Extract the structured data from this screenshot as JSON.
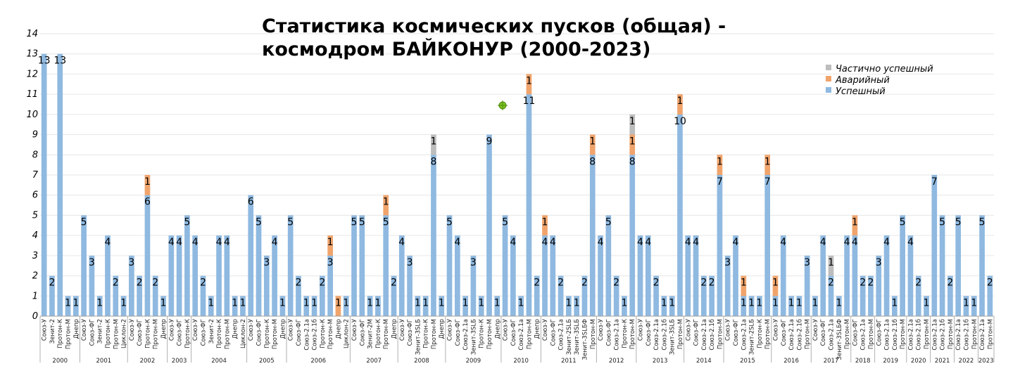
{
  "chart_data": {
    "type": "bar",
    "stacked": true,
    "title": "Статистика космических пусков (общая) - космодром БАЙКОНУР (2000-2023)",
    "title_lines": [
      "Статистика космических пусков (общая) -",
      "космодром БАЙКОНУР (2000-2023)"
    ],
    "ylim": [
      0,
      14
    ],
    "yticks": [
      0,
      1,
      2,
      3,
      4,
      5,
      6,
      7,
      8,
      9,
      10,
      11,
      12,
      13,
      14
    ],
    "grid": true,
    "legend_position": "top-right",
    "colors": {
      "success": "#8fb9e0",
      "failure": "#f0a46c",
      "partial": "#bdbdbd",
      "marker": "#7cc41f"
    },
    "series": [
      {
        "key": "partial",
        "name": "Частично успешный"
      },
      {
        "key": "failure",
        "name": "Аварийный"
      },
      {
        "key": "success",
        "name": "Успешный"
      }
    ],
    "groups": [
      {
        "year": "2000",
        "bars": [
          {
            "label": "Союз-У",
            "s": 13,
            "f": 0,
            "p": 0
          },
          {
            "label": "Зенит-2",
            "s": 2,
            "f": 0,
            "p": 0
          },
          {
            "label": "Протон-К",
            "s": 13,
            "f": 0,
            "p": 0
          },
          {
            "label": "Протон-М",
            "s": 1,
            "f": 0,
            "p": 0
          },
          {
            "label": "Днепр",
            "s": 1,
            "f": 0,
            "p": 0
          }
        ]
      },
      {
        "year": "2001",
        "bars": [
          {
            "label": "Союз-У",
            "s": 5,
            "f": 0,
            "p": 0
          },
          {
            "label": "Союз-ФГ",
            "s": 3,
            "f": 0,
            "p": 0
          },
          {
            "label": "Зенит-2",
            "s": 1,
            "f": 0,
            "p": 0
          },
          {
            "label": "Протон-К",
            "s": 4,
            "f": 0,
            "p": 0
          },
          {
            "label": "Протон-М",
            "s": 2,
            "f": 0,
            "p": 0
          },
          {
            "label": "Циклон-2",
            "s": 1,
            "f": 0,
            "p": 0
          }
        ]
      },
      {
        "year": "2002",
        "bars": [
          {
            "label": "Союз-У",
            "s": 3,
            "f": 0,
            "p": 0
          },
          {
            "label": "Союз-ФГ",
            "s": 2,
            "f": 0,
            "p": 0
          },
          {
            "label": "Протон-К",
            "s": 6,
            "f": 1,
            "p": 0
          },
          {
            "label": "Протон-М",
            "s": 2,
            "f": 0,
            "p": 0
          },
          {
            "label": "Днепр",
            "s": 1,
            "f": 0,
            "p": 0
          }
        ]
      },
      {
        "year": "2003",
        "bars": [
          {
            "label": "Союз-У",
            "s": 4,
            "f": 0,
            "p": 0
          },
          {
            "label": "Союз-ФГ",
            "s": 4,
            "f": 0,
            "p": 0
          },
          {
            "label": "Протон-К",
            "s": 5,
            "f": 0,
            "p": 0
          }
        ]
      },
      {
        "year": "2004",
        "bars": [
          {
            "label": "Союз-У",
            "s": 4,
            "f": 0,
            "p": 0
          },
          {
            "label": "Союз-ФГ",
            "s": 2,
            "f": 0,
            "p": 0
          },
          {
            "label": "Зенит-2",
            "s": 1,
            "f": 0,
            "p": 0
          },
          {
            "label": "Протон-К",
            "s": 4,
            "f": 0,
            "p": 0
          },
          {
            "label": "Протон-М",
            "s": 4,
            "f": 0,
            "p": 0
          },
          {
            "label": "Днепр",
            "s": 1,
            "f": 0,
            "p": 0
          },
          {
            "label": "Циклон-2",
            "s": 1,
            "f": 0,
            "p": 0
          }
        ]
      },
      {
        "year": "2005",
        "bars": [
          {
            "label": "Союз-У",
            "s": 6,
            "f": 0,
            "p": 0
          },
          {
            "label": "Союз-ФГ",
            "s": 5,
            "f": 0,
            "p": 0
          },
          {
            "label": "Протон-К",
            "s": 3,
            "f": 0,
            "p": 0
          },
          {
            "label": "Протон-М",
            "s": 4,
            "f": 0,
            "p": 0
          },
          {
            "label": "Днепр",
            "s": 1,
            "f": 0,
            "p": 0
          }
        ]
      },
      {
        "year": "2006",
        "bars": [
          {
            "label": "Союз-У",
            "s": 5,
            "f": 0,
            "p": 0
          },
          {
            "label": "Союз-ФГ",
            "s": 2,
            "f": 0,
            "p": 0
          },
          {
            "label": "Союз-2.1а",
            "s": 1,
            "f": 0,
            "p": 0
          },
          {
            "label": "Союз-2.1б",
            "s": 1,
            "f": 0,
            "p": 0
          },
          {
            "label": "Протон-К",
            "s": 2,
            "f": 0,
            "p": 0
          },
          {
            "label": "Протон-М",
            "s": 3,
            "f": 1,
            "p": 0
          },
          {
            "label": "Днепр",
            "s": 0,
            "f": 1,
            "p": 0
          },
          {
            "label": "Циклон-2",
            "s": 1,
            "f": 0,
            "p": 0
          }
        ]
      },
      {
        "year": "2007",
        "bars": [
          {
            "label": "Союз-У",
            "s": 5,
            "f": 0,
            "p": 0
          },
          {
            "label": "Союз-ФГ",
            "s": 5,
            "f": 0,
            "p": 0
          },
          {
            "label": "Зенит-2М",
            "s": 1,
            "f": 0,
            "p": 0
          },
          {
            "label": "Протон-К",
            "s": 1,
            "f": 0,
            "p": 0
          },
          {
            "label": "Протон-М",
            "s": 5,
            "f": 1,
            "p": 0
          },
          {
            "label": "Днепр",
            "s": 2,
            "f": 0,
            "p": 0
          }
        ]
      },
      {
        "year": "2008",
        "bars": [
          {
            "label": "Союз-У",
            "s": 4,
            "f": 0,
            "p": 0
          },
          {
            "label": "Союз-ФГ",
            "s": 3,
            "f": 0,
            "p": 0
          },
          {
            "label": "Зенит-3SLБ",
            "s": 1,
            "f": 0,
            "p": 0
          },
          {
            "label": "Протон-К",
            "s": 1,
            "f": 0,
            "p": 0
          },
          {
            "label": "Протон-М",
            "s": 8,
            "f": 0,
            "p": 1
          },
          {
            "label": "Днепр",
            "s": 1,
            "f": 0,
            "p": 0
          }
        ]
      },
      {
        "year": "2009",
        "bars": [
          {
            "label": "Союз-У",
            "s": 5,
            "f": 0,
            "p": 0
          },
          {
            "label": "Союз-ФГ",
            "s": 4,
            "f": 0,
            "p": 0
          },
          {
            "label": "Союз-2.1а",
            "s": 1,
            "f": 0,
            "p": 0
          },
          {
            "label": "Зенит-3SLБ",
            "s": 3,
            "f": 0,
            "p": 0
          },
          {
            "label": "Протон-К",
            "s": 1,
            "f": 0,
            "p": 0
          },
          {
            "label": "Протон-М",
            "s": 9,
            "f": 0,
            "p": 0
          },
          {
            "label": "Днепр",
            "s": 1,
            "f": 0,
            "p": 0
          }
        ]
      },
      {
        "year": "2010",
        "bars": [
          {
            "label": "Союз-У",
            "s": 5,
            "f": 0,
            "p": 0
          },
          {
            "label": "Союз-ФГ",
            "s": 4,
            "f": 0,
            "p": 0
          },
          {
            "label": "Союз-2.1а",
            "s": 1,
            "f": 0,
            "p": 0
          },
          {
            "label": "Протон-М",
            "s": 11,
            "f": 1,
            "p": 0
          },
          {
            "label": "Днепр",
            "s": 2,
            "f": 0,
            "p": 0
          }
        ]
      },
      {
        "year": "2011",
        "bars": [
          {
            "label": "Союз-У",
            "s": 4,
            "f": 1,
            "p": 0
          },
          {
            "label": "Союз-ФГ",
            "s": 4,
            "f": 0,
            "p": 0
          },
          {
            "label": "Союз-2.1а",
            "s": 2,
            "f": 0,
            "p": 0
          },
          {
            "label": "Зенит-2SLБ",
            "s": 1,
            "f": 0,
            "p": 0
          },
          {
            "label": "Зенит-3SLБ",
            "s": 1,
            "f": 0,
            "p": 0
          },
          {
            "label": "Зенит-3SLБФ",
            "s": 2,
            "f": 0,
            "p": 0
          },
          {
            "label": "Протон-М",
            "s": 8,
            "f": 1,
            "p": 0
          }
        ]
      },
      {
        "year": "2012",
        "bars": [
          {
            "label": "Союз-У",
            "s": 4,
            "f": 0,
            "p": 0
          },
          {
            "label": "Союз-ФГ",
            "s": 5,
            "f": 0,
            "p": 0
          },
          {
            "label": "Союз-2.1а",
            "s": 2,
            "f": 0,
            "p": 0
          },
          {
            "label": "Протон-К",
            "s": 1,
            "f": 0,
            "p": 0
          },
          {
            "label": "Протон-М",
            "s": 8,
            "f": 1,
            "p": 1
          }
        ]
      },
      {
        "year": "2013",
        "bars": [
          {
            "label": "Союз-У",
            "s": 4,
            "f": 0,
            "p": 0
          },
          {
            "label": "Союз-ФГ",
            "s": 4,
            "f": 0,
            "p": 0
          },
          {
            "label": "Союз-2.1а",
            "s": 2,
            "f": 0,
            "p": 0
          },
          {
            "label": "Союз-2.1б",
            "s": 1,
            "f": 0,
            "p": 0
          },
          {
            "label": "Зенит-3SLБ",
            "s": 1,
            "f": 0,
            "p": 0
          },
          {
            "label": "Протон-М",
            "s": 10,
            "f": 1,
            "p": 0
          }
        ]
      },
      {
        "year": "2014",
        "bars": [
          {
            "label": "Союз-У",
            "s": 4,
            "f": 0,
            "p": 0
          },
          {
            "label": "Союз-ФГ",
            "s": 4,
            "f": 0,
            "p": 0
          },
          {
            "label": "Союз-2.1а",
            "s": 2,
            "f": 0,
            "p": 0
          },
          {
            "label": "Союз-2.1б",
            "s": 2,
            "f": 0,
            "p": 0
          },
          {
            "label": "Протон-М",
            "s": 7,
            "f": 1,
            "p": 0
          }
        ]
      },
      {
        "year": "2015",
        "bars": [
          {
            "label": "Союз-У",
            "s": 3,
            "f": 0,
            "p": 0
          },
          {
            "label": "Союз-ФГ",
            "s": 4,
            "f": 0,
            "p": 0
          },
          {
            "label": "Союз-2.1а",
            "s": 1,
            "f": 1,
            "p": 0
          },
          {
            "label": "Зенит-2SLБ",
            "s": 1,
            "f": 0,
            "p": 0
          },
          {
            "label": "Протон-К",
            "s": 1,
            "f": 0,
            "p": 0
          },
          {
            "label": "Протон-М",
            "s": 7,
            "f": 1,
            "p": 0
          }
        ]
      },
      {
        "year": "2016",
        "bars": [
          {
            "label": "Союз-У",
            "s": 1,
            "f": 1,
            "p": 0
          },
          {
            "label": "Союз-ФГ",
            "s": 4,
            "f": 0,
            "p": 0
          },
          {
            "label": "Союз-2.1а",
            "s": 1,
            "f": 0,
            "p": 0
          },
          {
            "label": "Союз-2.1б",
            "s": 1,
            "f": 0,
            "p": 0
          },
          {
            "label": "Протон-М",
            "s": 3,
            "f": 0,
            "p": 0
          }
        ]
      },
      {
        "year": "2017",
        "bars": [
          {
            "label": "Союз-У",
            "s": 1,
            "f": 0,
            "p": 0
          },
          {
            "label": "Союз-ФГ",
            "s": 4,
            "f": 0,
            "p": 0
          },
          {
            "label": "Союз-2.1а",
            "s": 2,
            "f": 0,
            "p": 1
          },
          {
            "label": "Зенит-3SLБФ",
            "s": 1,
            "f": 0,
            "p": 0
          },
          {
            "label": "Протон-М",
            "s": 4,
            "f": 0,
            "p": 0
          }
        ]
      },
      {
        "year": "2018",
        "bars": [
          {
            "label": "Союз-ФГ",
            "s": 4,
            "f": 1,
            "p": 0
          },
          {
            "label": "Союз-2.1а",
            "s": 2,
            "f": 0,
            "p": 0
          },
          {
            "label": "Протон-М",
            "s": 2,
            "f": 0,
            "p": 0
          }
        ]
      },
      {
        "year": "2019",
        "bars": [
          {
            "label": "Союз-ФГ",
            "s": 3,
            "f": 0,
            "p": 0
          },
          {
            "label": "Союз-2.1а",
            "s": 4,
            "f": 0,
            "p": 0
          },
          {
            "label": "Союз-2.1б",
            "s": 1,
            "f": 0,
            "p": 0
          },
          {
            "label": "Протон-М",
            "s": 5,
            "f": 0,
            "p": 0
          }
        ]
      },
      {
        "year": "2020",
        "bars": [
          {
            "label": "Союз-2.1а",
            "s": 4,
            "f": 0,
            "p": 0
          },
          {
            "label": "Союз-2.1б",
            "s": 2,
            "f": 0,
            "p": 0
          },
          {
            "label": "Протон-М",
            "s": 1,
            "f": 0,
            "p": 0
          }
        ]
      },
      {
        "year": "2021",
        "bars": [
          {
            "label": "Союз-2.1а",
            "s": 7,
            "f": 0,
            "p": 0
          },
          {
            "label": "Союз-2.1б",
            "s": 5,
            "f": 0,
            "p": 0
          },
          {
            "label": "Протон-М",
            "s": 2,
            "f": 0,
            "p": 0
          }
        ]
      },
      {
        "year": "2022",
        "bars": [
          {
            "label": "Союз-2.1а",
            "s": 5,
            "f": 0,
            "p": 0
          },
          {
            "label": "Союз-2.1б",
            "s": 1,
            "f": 0,
            "p": 0
          },
          {
            "label": "Протон-М",
            "s": 1,
            "f": 0,
            "p": 0
          }
        ]
      },
      {
        "year": "2023",
        "bars": [
          {
            "label": "Союз-2.1а",
            "s": 5,
            "f": 0,
            "p": 0
          },
          {
            "label": "Протон-М",
            "s": 2,
            "f": 0,
            "p": 0
          }
        ]
      }
    ]
  }
}
